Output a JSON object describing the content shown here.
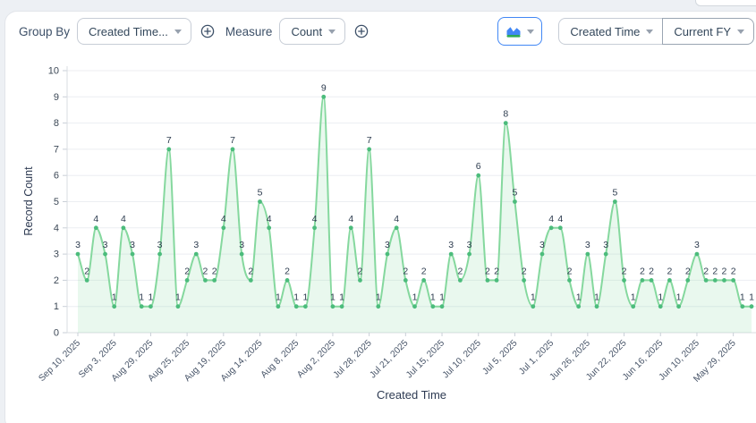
{
  "toolbar": {
    "group_by_label": "Group By",
    "group_by_value": "Created Time...",
    "measure_label": "Measure",
    "measure_value": "Count",
    "chart_type_icon": "area-chart",
    "x_field_value": "Created Time",
    "date_range_value": "Current FY"
  },
  "chart_data": {
    "type": "area",
    "title": "",
    "xlabel": "Created Time",
    "ylabel": "Record Count",
    "ylim": [
      0,
      10
    ],
    "y_ticks": [
      0,
      1,
      2,
      3,
      4,
      5,
      6,
      7,
      8,
      9,
      10
    ],
    "grid": "horizontal",
    "legend_position": "none",
    "point_labels_shown": true,
    "x_tick_interval": 4,
    "x_tick_labels": [
      "Sep 10, 2025",
      "Sep 3, 2025",
      "Aug 29, 2025",
      "Aug 25, 2025",
      "Aug 19, 2025",
      "Aug 14, 2025",
      "Aug 8, 2025",
      "Aug 2, 2025",
      "Jul 28, 2025",
      "Jul 21, 2025",
      "Jul 15, 2025",
      "Jul 10, 2025",
      "Jul 5, 2025",
      "Jul 1, 2025",
      "Jun 26, 2025",
      "Jun 22, 2025",
      "Jun 16, 2025",
      "Jun 10, 2025",
      "May 29, 2025"
    ],
    "values": [
      3,
      2,
      4,
      3,
      1,
      4,
      3,
      1,
      1,
      3,
      7,
      1,
      2,
      3,
      2,
      2,
      4,
      7,
      3,
      2,
      5,
      4,
      1,
      2,
      1,
      1,
      4,
      9,
      1,
      1,
      4,
      2,
      7,
      1,
      3,
      4,
      2,
      1,
      2,
      1,
      1,
      3,
      2,
      3,
      6,
      2,
      2,
      8,
      5,
      2,
      1,
      3,
      4,
      4,
      2,
      1,
      3,
      1,
      3,
      5,
      2,
      1,
      2,
      2,
      1,
      2,
      1,
      2,
      3,
      2,
      2,
      2,
      2,
      1,
      1
    ],
    "colors": {
      "line": "#85d89e",
      "fill": "rgba(133,216,158,0.18)",
      "point": "#4cbc7c",
      "point_label": "#2d3c4f",
      "grid": "#eceef2",
      "axis": "#d8dce2",
      "tick_mark": "#c9cfd7",
      "y_tick_text": "#3c4856",
      "x_tick_text": "#475468",
      "accent_blue": "#4187f5",
      "icon_green": "#2fa956"
    }
  }
}
